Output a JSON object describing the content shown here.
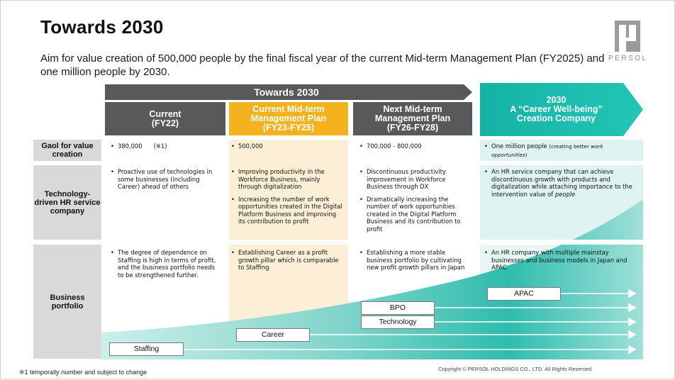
{
  "title": "Towards 2030",
  "subtitle": "Aim for value creation of 500,000 people by the final fiscal year of the current Mid-term Management Plan (FY2025) and one million people by 2030.",
  "logo": {
    "text": "PERSOL"
  },
  "banner": {
    "label": "Towards 2030"
  },
  "columns": [
    {
      "line1": "Current",
      "line2": "(FY22)"
    },
    {
      "line1": "Current Mid-term",
      "line2": "Management Plan",
      "line3": "(FY23-FY25)"
    },
    {
      "line1": "Next Mid-term",
      "line2": "Management Plan",
      "line3": "(FY26-FY28)"
    },
    {
      "line1": "2030",
      "line2": "A “Career Well-being”",
      "line3": "Creation Company"
    }
  ],
  "rows": [
    {
      "label": "Gaol for value creation"
    },
    {
      "label": "Technology-driven HR service company"
    },
    {
      "label": "Business portfolio"
    }
  ],
  "goal": {
    "current": "380,000",
    "current_note": "(※1)",
    "mid": "500,000",
    "next": "700,000 - 800,000",
    "y2030": "One million people",
    "y2030_note_a": "(creating better ",
    "y2030_note_b": "work opportunities",
    "y2030_note_c": ")"
  },
  "tech": {
    "current": [
      "Proactive use of technologies in some businesses (including Career) ahead of others"
    ],
    "mid": [
      "Improving productivity in the Workforce Business, mainly through digitalization",
      "Increasing the number of work opportunities created in the Digital Platform Business and improving its contribution to profit"
    ],
    "next": [
      "Discontinuous productivity improvement in Workforce Business through DX",
      "Dramatically increasing the number of work opportunities created in the Digital Platform Business and its contribution to profit"
    ],
    "y2030_a": "An HR service company that can achieve discontinuous growth with products and digitalization while attaching importance to the intervention value of ",
    "y2030_b": "people"
  },
  "portfolio": {
    "current": [
      "The degree of dependence on Staffing is high in terms of profit, and the business portfolio needs to be strengthened further."
    ],
    "mid": [
      "Establishing Career as a profit growth pillar which is comparable to Staffing"
    ],
    "next": [
      "Establishing a more stable business portfolio by cultivating new profit growth pillars in Japan"
    ],
    "y2030": [
      "An HR company with multiple mainstay businesses and business models in Japan and APAC"
    ]
  },
  "businesses": [
    "Staffing",
    "Career",
    "Technology",
    "BPO",
    "APAC"
  ],
  "footnote": "※1 temporally number and subject to change",
  "copyright": "Copyright © PERSOL HOLDINGS CO., LTD. All Rights Reserved.",
  "colors": {
    "dark_gray": "#58595b",
    "orange": "#f5b21f",
    "teal": "#14b8a9",
    "light_teal": "#dff3f1",
    "light_orange": "#fdefd6",
    "label_gray": "#d9d9d9"
  }
}
